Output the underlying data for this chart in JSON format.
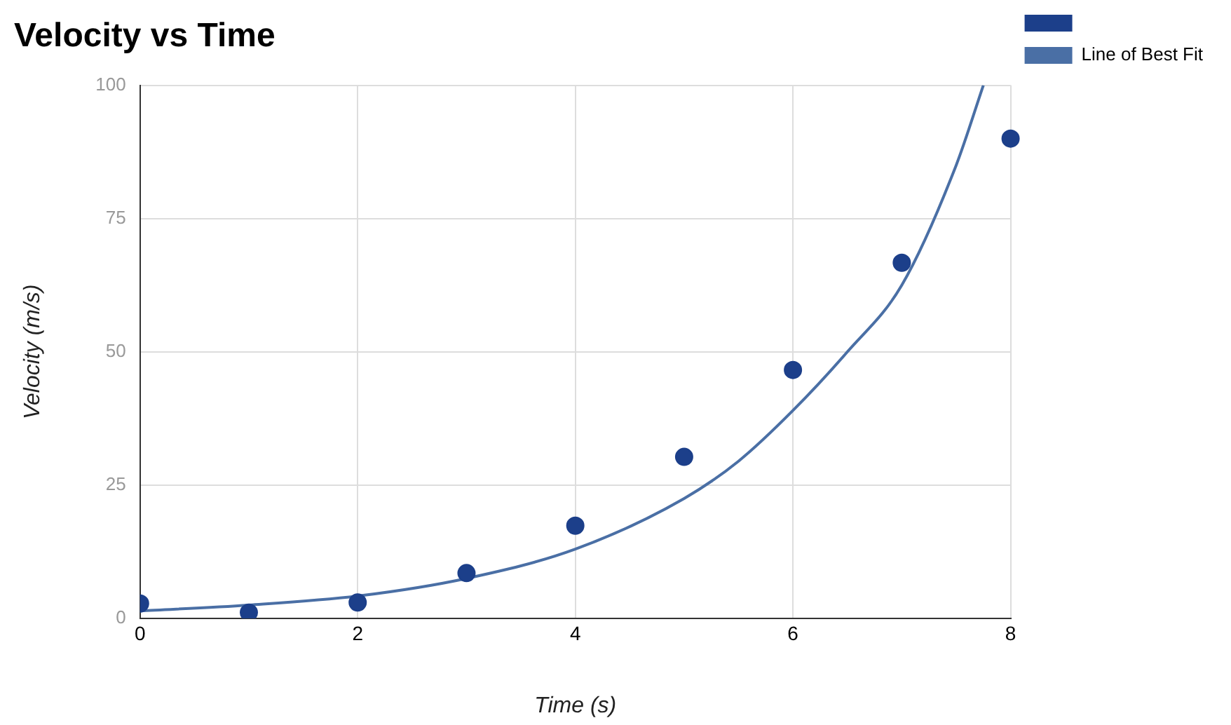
{
  "chart_data": {
    "type": "scatter",
    "title": "Velocity vs Time",
    "xlabel": "Time (s)",
    "ylabel": "Velocity (m/s)",
    "xlim": [
      0,
      8
    ],
    "xticks": [
      0,
      2,
      4,
      6,
      8
    ],
    "ylim": [
      0,
      100
    ],
    "yticks": [
      0,
      25,
      50,
      75,
      100
    ],
    "grid": true,
    "legend": "top right",
    "marker": "circle",
    "series": [
      {
        "color": "#1c3f8a",
        "x": [
          0,
          1,
          2,
          3,
          4,
          5,
          6,
          7,
          8
        ],
        "values": [
          2.8,
          1.1,
          3,
          8.5,
          17.4,
          30.3,
          46.6,
          66.7,
          90
        ]
      },
      {
        "type": "line",
        "name": "Line of Best Fit",
        "color": "#4a6fa5",
        "marker": "none",
        "x": [
          0,
          1,
          2,
          3,
          4,
          5,
          5.5,
          6,
          6.5,
          7,
          7.5,
          7.75
        ],
        "values": [
          1.4,
          2.5,
          4.2,
          7.5,
          13,
          22.5,
          29.5,
          39,
          50,
          62.5,
          85,
          100
        ]
      }
    ]
  }
}
